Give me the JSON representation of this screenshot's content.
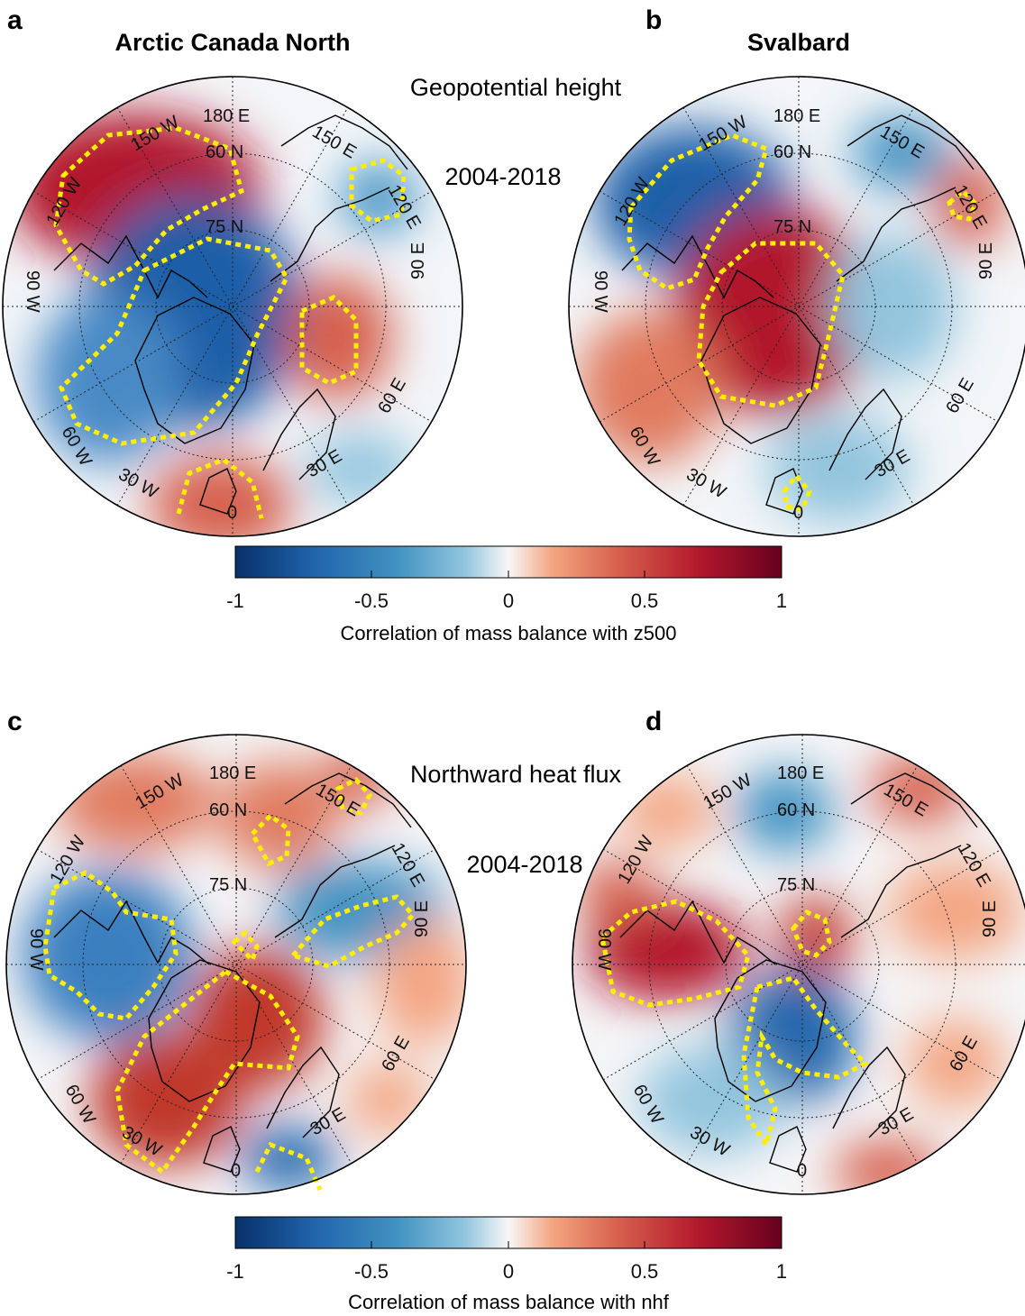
{
  "panels": [
    {
      "letter": "a",
      "title": "Arctic Canada North",
      "section_title": "Geopotential height",
      "period": "2004-2018"
    },
    {
      "letter": "b",
      "title": "Svalbard",
      "section_title": "",
      "period": ""
    },
    {
      "letter": "c",
      "title": "",
      "section_title": "Northward heat flux",
      "period": "2004-2018"
    },
    {
      "letter": "d",
      "title": "",
      "section_title": "",
      "period": ""
    }
  ],
  "lat_labels": [
    "60 N",
    "75 N"
  ],
  "lon_labels": [
    "180 E",
    "150 W",
    "120 W",
    "90 W",
    "60 W",
    "30 W",
    "0",
    "30 E",
    "60 E",
    "90 E",
    "120 E",
    "150 E"
  ],
  "colorbars": [
    {
      "ticks": [
        "-1",
        "-0.5",
        "0",
        "0.5",
        "1"
      ],
      "label": "Correlation of mass balance with z500"
    },
    {
      "ticks": [
        "-1",
        "-0.5",
        "0",
        "0.5",
        "1"
      ],
      "label": "Correlation of mass balance with nhf"
    }
  ],
  "colors": {
    "neg_extreme": "#08306b",
    "neg_strong": "#2166ac",
    "neg_mid": "#4393c3",
    "neg_light": "#92c5de",
    "neutral": "#f7f7f7",
    "pos_light": "#f4a582",
    "pos_mid": "#d6604d",
    "pos_strong": "#b2182b",
    "pos_extreme": "#67001f",
    "significance_contour": "#ffee00",
    "coastline": "#000000"
  }
}
